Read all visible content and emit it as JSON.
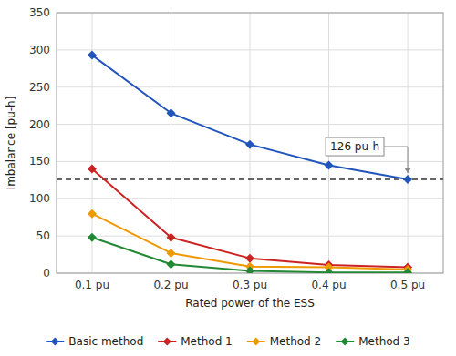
{
  "chart_data": {
    "type": "line",
    "xlabel": "Rated power of the ESS",
    "ylabel": "Imbalance [pu-h]",
    "x": [
      0.1,
      0.2,
      0.3,
      0.4,
      0.5
    ],
    "xlim": [
      0.055,
      0.545
    ],
    "xticks": [
      {
        "value": 0.1,
        "label": "0.1 pu"
      },
      {
        "value": 0.2,
        "label": "0.2 pu"
      },
      {
        "value": 0.3,
        "label": "0.3 pu"
      },
      {
        "value": 0.4,
        "label": "0.4 pu"
      },
      {
        "value": 0.5,
        "label": "0.5 pu"
      }
    ],
    "ylim": [
      0,
      350
    ],
    "yticks": [
      0,
      50,
      100,
      150,
      200,
      250,
      300,
      350
    ],
    "grid": true,
    "legend": "bottom",
    "marker": "diamond",
    "series": [
      {
        "name": "Basic method",
        "color": "#2255bb",
        "values": [
          293,
          215,
          173,
          145,
          126
        ]
      },
      {
        "name": "Method 1",
        "color": "#cc2222",
        "values": [
          140,
          48,
          20,
          11,
          8
        ]
      },
      {
        "name": "Method 2",
        "color": "#ee9900",
        "values": [
          80,
          27,
          9,
          8,
          5
        ]
      },
      {
        "name": "Method 3",
        "color": "#228833",
        "values": [
          48,
          12,
          3,
          1,
          1
        ]
      }
    ],
    "reference_line": {
      "y": 126,
      "line_style": "dashed"
    },
    "annotations": [
      {
        "text": "126 pu-h",
        "x": 0.5,
        "y": 126
      }
    ]
  }
}
